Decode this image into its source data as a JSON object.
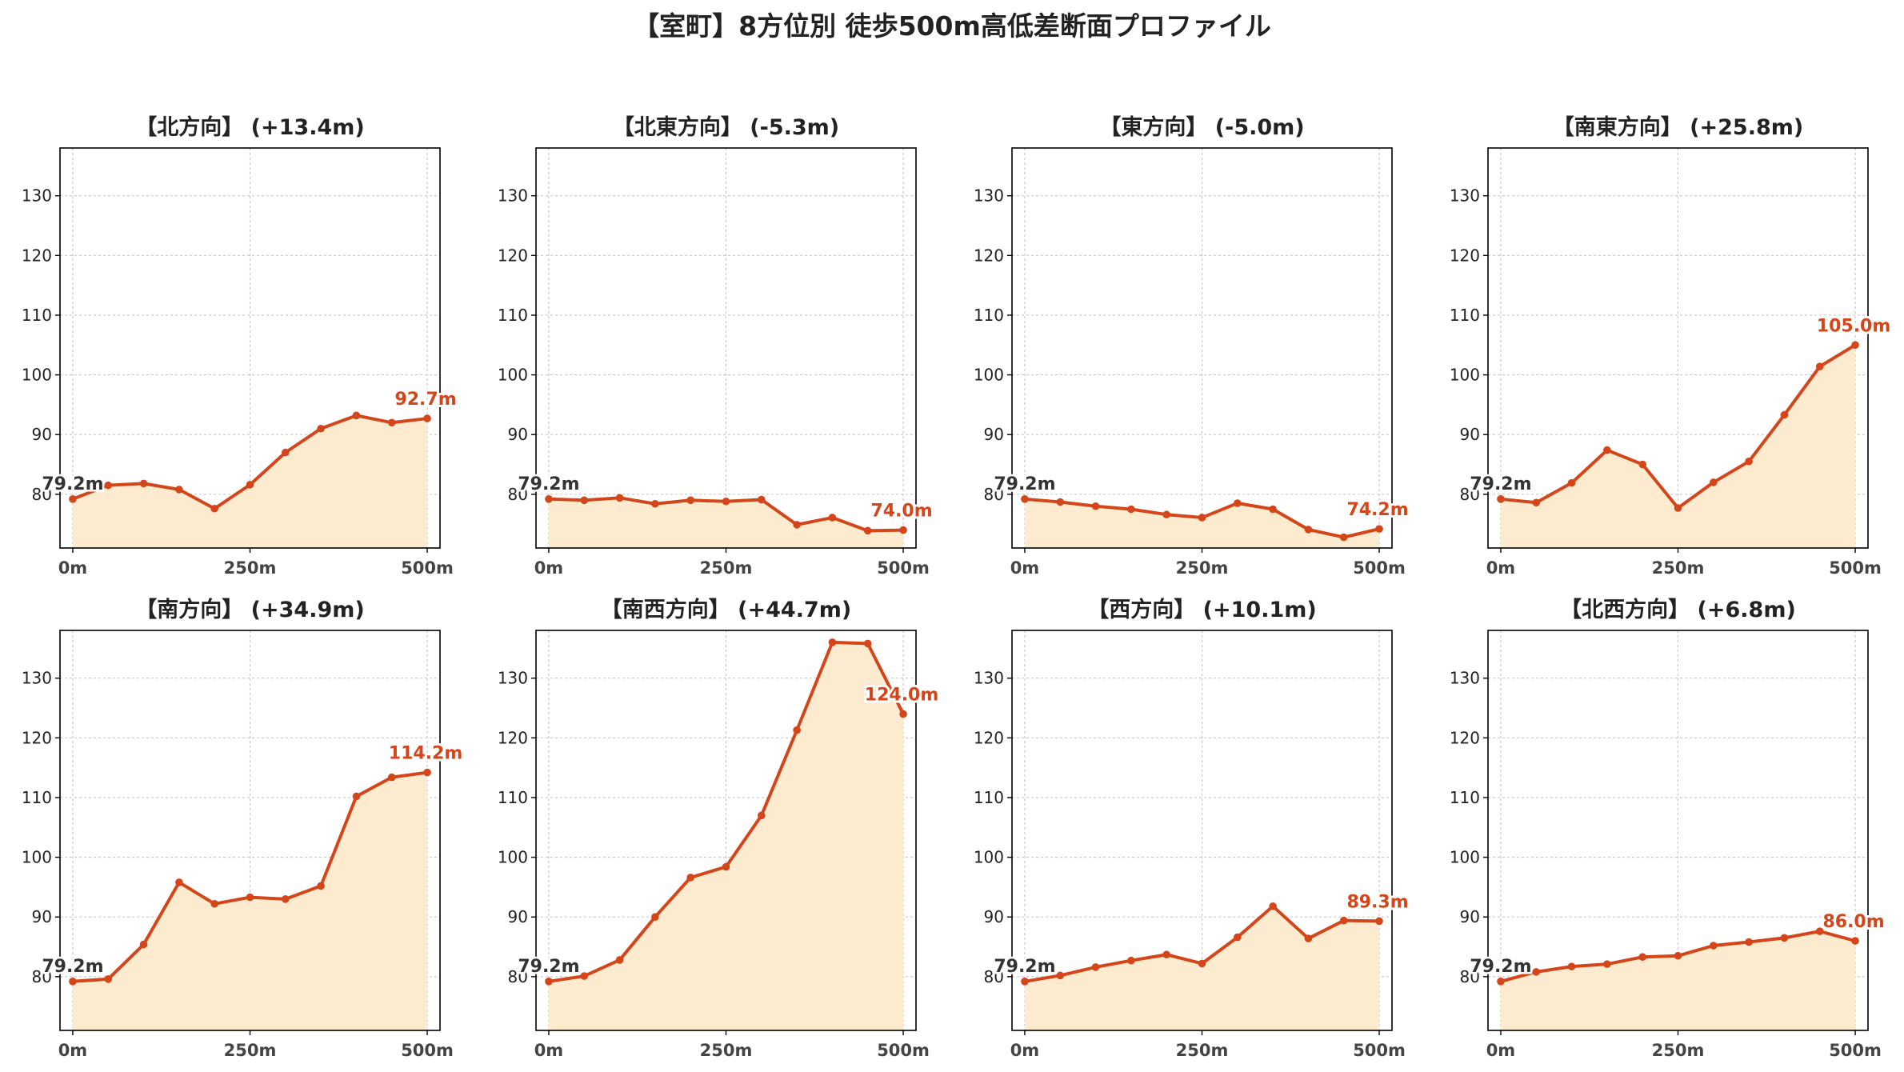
{
  "figure_title": "【室町】8方位別 徒歩500m高低差断面プロファイル",
  "colors": {
    "line": "#d4451a",
    "fill": "#fdebd0",
    "grid": "#c8c8c8",
    "axis": "#000000"
  },
  "chart_data": [
    {
      "type": "area",
      "title": "【北方向】 (+13.4m)",
      "x": [
        0,
        50,
        100,
        150,
        200,
        250,
        300,
        350,
        400,
        450,
        500
      ],
      "y": [
        79.2,
        81.5,
        81.8,
        80.8,
        77.6,
        81.6,
        87.0,
        91.0,
        93.2,
        92.0,
        92.7
      ],
      "x_ticks": [
        "0m",
        "250m",
        "500m"
      ],
      "y_ticks": [
        "80",
        "90",
        "100",
        "110",
        "120",
        "130"
      ],
      "xlim": [
        -18,
        518
      ],
      "ylim": [
        71,
        138
      ],
      "start_label": "79.2m",
      "end_label": "92.7m",
      "grid": true
    },
    {
      "type": "area",
      "title": "【北東方向】 (-5.3m)",
      "x": [
        0,
        50,
        100,
        150,
        200,
        250,
        300,
        350,
        400,
        450,
        500
      ],
      "y": [
        79.2,
        79.0,
        79.4,
        78.4,
        79.0,
        78.8,
        79.1,
        74.9,
        76.1,
        73.9,
        74.0
      ],
      "x_ticks": [
        "0m",
        "250m",
        "500m"
      ],
      "y_ticks": [
        "80",
        "90",
        "100",
        "110",
        "120",
        "130"
      ],
      "xlim": [
        -18,
        518
      ],
      "ylim": [
        71,
        138
      ],
      "start_label": "79.2m",
      "end_label": "74.0m",
      "grid": true
    },
    {
      "type": "area",
      "title": "【東方向】 (-5.0m)",
      "x": [
        0,
        50,
        100,
        150,
        200,
        250,
        300,
        350,
        400,
        450,
        500
      ],
      "y": [
        79.2,
        78.7,
        78.0,
        77.5,
        76.6,
        76.1,
        78.5,
        77.5,
        74.1,
        72.8,
        74.2
      ],
      "x_ticks": [
        "0m",
        "250m",
        "500m"
      ],
      "y_ticks": [
        "80",
        "90",
        "100",
        "110",
        "120",
        "130"
      ],
      "xlim": [
        -18,
        518
      ],
      "ylim": [
        71,
        138
      ],
      "start_label": "79.2m",
      "end_label": "74.2m",
      "grid": true
    },
    {
      "type": "area",
      "title": "【南東方向】 (+25.8m)",
      "x": [
        0,
        50,
        100,
        150,
        200,
        250,
        300,
        350,
        400,
        450,
        500
      ],
      "y": [
        79.2,
        78.6,
        81.9,
        87.4,
        85.0,
        77.7,
        82.0,
        85.5,
        93.3,
        101.4,
        105.0
      ],
      "x_ticks": [
        "0m",
        "250m",
        "500m"
      ],
      "y_ticks": [
        "80",
        "90",
        "100",
        "110",
        "120",
        "130"
      ],
      "xlim": [
        -18,
        518
      ],
      "ylim": [
        71,
        138
      ],
      "start_label": "79.2m",
      "end_label": "105.0m",
      "grid": true
    },
    {
      "type": "area",
      "title": "【南方向】 (+34.9m)",
      "x": [
        0,
        50,
        100,
        150,
        200,
        250,
        300,
        350,
        400,
        450,
        500
      ],
      "y": [
        79.2,
        79.6,
        85.4,
        95.8,
        92.2,
        93.3,
        93.0,
        95.2,
        110.2,
        113.4,
        114.2
      ],
      "x_ticks": [
        "0m",
        "250m",
        "500m"
      ],
      "y_ticks": [
        "80",
        "90",
        "100",
        "110",
        "120",
        "130"
      ],
      "xlim": [
        -18,
        518
      ],
      "ylim": [
        71,
        138
      ],
      "start_label": "79.2m",
      "end_label": "114.2m",
      "grid": true
    },
    {
      "type": "area",
      "title": "【南西方向】 (+44.7m)",
      "x": [
        0,
        50,
        100,
        150,
        200,
        250,
        300,
        350,
        400,
        450,
        500
      ],
      "y": [
        79.2,
        80.1,
        82.8,
        90.0,
        96.6,
        98.4,
        107.0,
        121.3,
        136.0,
        135.8,
        124.0
      ],
      "x_ticks": [
        "0m",
        "250m",
        "500m"
      ],
      "y_ticks": [
        "80",
        "90",
        "100",
        "110",
        "120",
        "130"
      ],
      "xlim": [
        -18,
        518
      ],
      "ylim": [
        71,
        138
      ],
      "start_label": "79.2m",
      "end_label": "124.0m",
      "grid": true
    },
    {
      "type": "area",
      "title": "【西方向】 (+10.1m)",
      "x": [
        0,
        50,
        100,
        150,
        200,
        250,
        300,
        350,
        400,
        450,
        500
      ],
      "y": [
        79.2,
        80.2,
        81.6,
        82.7,
        83.7,
        82.2,
        86.6,
        91.8,
        86.4,
        89.4,
        89.3
      ],
      "x_ticks": [
        "0m",
        "250m",
        "500m"
      ],
      "y_ticks": [
        "80",
        "90",
        "100",
        "110",
        "120",
        "130"
      ],
      "xlim": [
        -18,
        518
      ],
      "ylim": [
        71,
        138
      ],
      "start_label": "79.2m",
      "end_label": "89.3m",
      "grid": true
    },
    {
      "type": "area",
      "title": "【北西方向】 (+6.8m)",
      "x": [
        0,
        50,
        100,
        150,
        200,
        250,
        300,
        350,
        400,
        450,
        500
      ],
      "y": [
        79.2,
        80.8,
        81.7,
        82.1,
        83.3,
        83.5,
        85.2,
        85.8,
        86.5,
        87.6,
        86.0
      ],
      "x_ticks": [
        "0m",
        "250m",
        "500m"
      ],
      "y_ticks": [
        "80",
        "90",
        "100",
        "110",
        "120",
        "130"
      ],
      "xlim": [
        -18,
        518
      ],
      "ylim": [
        71,
        138
      ],
      "start_label": "79.2m",
      "end_label": "86.0m",
      "grid": true
    }
  ]
}
